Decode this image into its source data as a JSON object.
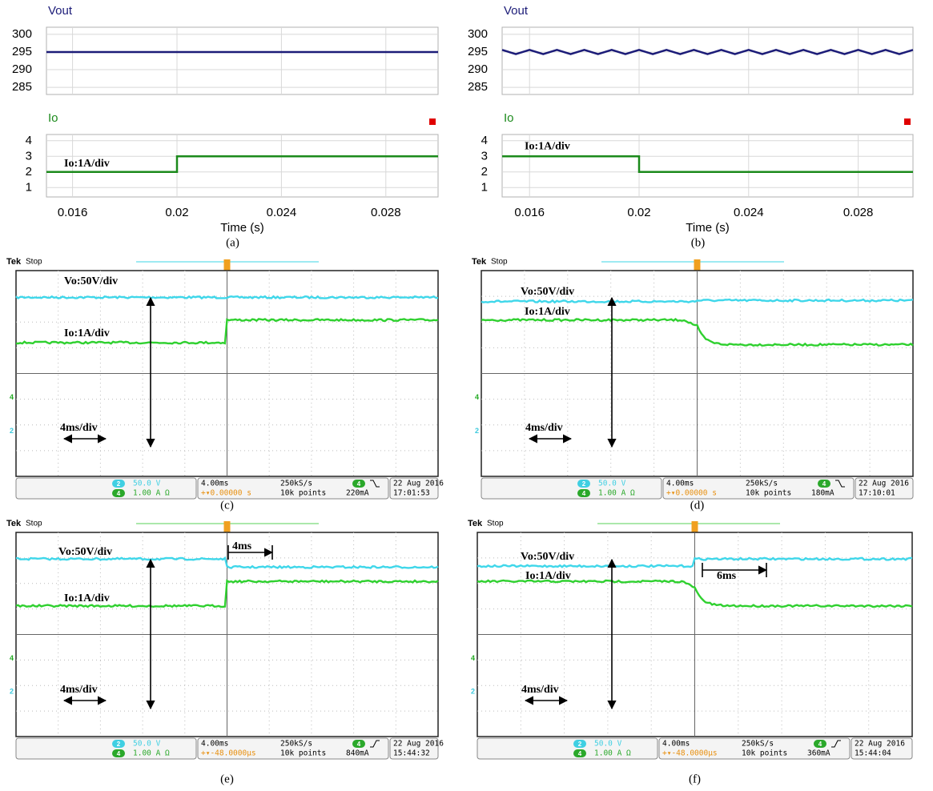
{
  "chart_data": [
    {
      "type": "line",
      "title": "Vout",
      "x": [
        0.015,
        0.03
      ],
      "values": [
        295,
        295
      ],
      "color": "#1c1c78",
      "xlim": [
        0.015,
        0.03
      ],
      "ylim": [
        283,
        302
      ],
      "yticks": [
        285,
        290,
        295,
        300
      ],
      "grid": true
    },
    {
      "type": "line",
      "title": "Io",
      "x": [
        0.015,
        0.02,
        0.02,
        0.03
      ],
      "values": [
        2,
        2,
        3,
        3
      ],
      "color": "#1b8a1b",
      "xlim": [
        0.015,
        0.03
      ],
      "ylim": [
        0.4,
        4.4
      ],
      "yticks": [
        1,
        2,
        3,
        4
      ],
      "xticks": [
        0.016,
        0.02,
        0.024,
        0.028
      ],
      "xlabel": "Time (s)",
      "annotation": "Io:1A/div",
      "caption": "(a)",
      "grid": true
    },
    {
      "type": "line",
      "title": "Vout",
      "x": [
        0.015,
        0.0155,
        0.016,
        0.0165,
        0.017,
        0.0175,
        0.018,
        0.0185,
        0.019,
        0.0195,
        0.02,
        0.0205,
        0.021,
        0.0215,
        0.022,
        0.0225,
        0.023,
        0.0235,
        0.024,
        0.0245,
        0.025,
        0.0255,
        0.026,
        0.0265,
        0.027,
        0.0275,
        0.028,
        0.0285,
        0.029,
        0.0295,
        0.03
      ],
      "values": [
        295.6,
        294.4,
        295.6,
        294.4,
        295.6,
        294.4,
        295.6,
        294.4,
        295.6,
        294.4,
        295.6,
        294.4,
        295.6,
        294.4,
        295.6,
        294.4,
        295.6,
        294.4,
        295.6,
        294.4,
        295.6,
        294.4,
        295.6,
        294.4,
        295.6,
        294.4,
        295.6,
        294.4,
        295.6,
        294.4,
        295.6
      ],
      "color": "#1c1c78",
      "xlim": [
        0.015,
        0.03
      ],
      "ylim": [
        283,
        302
      ],
      "yticks": [
        285,
        290,
        295,
        300
      ],
      "grid": true
    },
    {
      "type": "line",
      "title": "Io",
      "x": [
        0.015,
        0.02,
        0.02,
        0.03
      ],
      "values": [
        3,
        3,
        2,
        2
      ],
      "color": "#1b8a1b",
      "xlim": [
        0.015,
        0.03
      ],
      "ylim": [
        0.4,
        4.4
      ],
      "yticks": [
        1,
        2,
        3,
        4
      ],
      "xticks": [
        0.016,
        0.02,
        0.024,
        0.028
      ],
      "xlabel": "Time (s)",
      "annotation": "Io:1A/div",
      "caption": "(b)",
      "grid": true
    }
  ],
  "scopes": [
    {
      "caption": "(c)",
      "tek": "Tek",
      "status": "Stop",
      "vo_label": "Vo:50V/div",
      "io_label": "Io:1A/div",
      "timebase_label": "4ms/div",
      "ch2": "2",
      "ch2_scale": "50.0 V",
      "ch4": "4",
      "ch4_scale": "1.00 A Ω",
      "horizontal": "4.00ms",
      "sample_rate": "250kS/s",
      "trigger_pos": "+▾0.00000 s",
      "record": "10k points",
      "trig_level": "220mA",
      "date": "22 Aug 2016",
      "time": "17:01:53"
    },
    {
      "caption": "(d)",
      "tek": "Tek",
      "status": "Stop",
      "vo_label": "Vo:50V/div",
      "io_label": "Io:1A/div",
      "timebase_label": "4ms/div",
      "ch2": "2",
      "ch2_scale": "50.0 V",
      "ch4": "4",
      "ch4_scale": "1.00 A Ω",
      "horizontal": "4.00ms",
      "sample_rate": "250kS/s",
      "trigger_pos": "+▾0.00000 s",
      "record": "10k points",
      "trig_level": "180mA",
      "date": "22 Aug 2016",
      "time": "17:10:01"
    },
    {
      "caption": "(e)",
      "tek": "Tek",
      "status": "Stop",
      "vo_label": "Vo:50V/div",
      "io_label": "Io:1A/div",
      "timebase_label": "4ms/div",
      "annotation": "4ms",
      "ch2": "2",
      "ch2_scale": "50.0 V",
      "ch4": "4",
      "ch4_scale": "1.00 A Ω",
      "horizontal": "4.00ms",
      "sample_rate": "250kS/s",
      "trigger_pos": "+▾-48.0000µs",
      "record": "10k points",
      "trig_level": "840mA",
      "date": "22 Aug 2016",
      "time": "15:44:32"
    },
    {
      "caption": "(f)",
      "tek": "Tek",
      "status": "Stop",
      "vo_label": "Vo:50V/div",
      "io_label": "Io:1A/div",
      "timebase_label": "4ms/div",
      "annotation": "6ms",
      "ch2": "2",
      "ch2_scale": "50.0 V",
      "ch4": "4",
      "ch4_scale": "1.00 A Ω",
      "horizontal": "4.00ms",
      "sample_rate": "250kS/s",
      "trigger_pos": "+▾-48.0000µs",
      "record": "10k points",
      "trig_level": "360mA",
      "date": "22 Aug 2016",
      "time": "15:44:04"
    }
  ]
}
